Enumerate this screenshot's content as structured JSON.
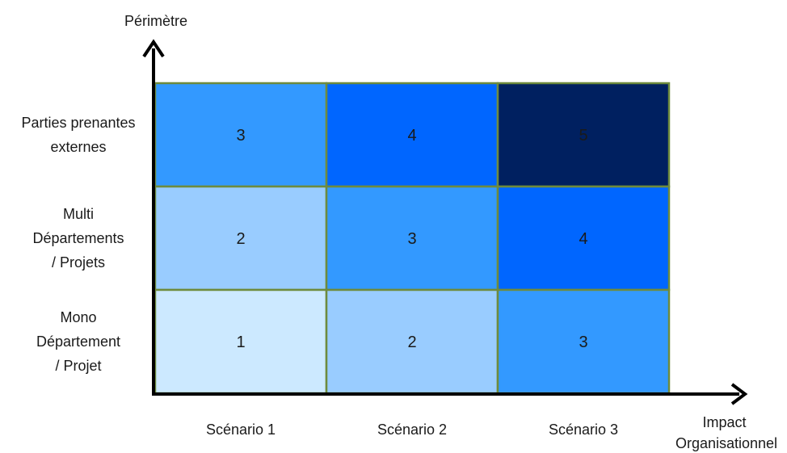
{
  "chart_data": {
    "type": "heatmap",
    "y_axis_title": "Périmètre",
    "x_axis_title_lines": [
      "Impact",
      "Organisationnel"
    ],
    "x_categories": [
      "Scénario 1",
      "Scénario 2",
      "Scénario 3"
    ],
    "y_categories": [
      [
        "Parties prenantes",
        "externes"
      ],
      [
        "Multi",
        "Départements",
        "/ Projets"
      ],
      [
        "Mono",
        "Département",
        "/ Projet"
      ]
    ],
    "values": [
      [
        3,
        4,
        5
      ],
      [
        2,
        3,
        4
      ],
      [
        1,
        2,
        3
      ]
    ],
    "level_colors": {
      "1": "#CCE9FF",
      "2": "#99CCFF",
      "3": "#3399FF",
      "4": "#0066FF",
      "5": "#002060"
    },
    "grid_color": "#6E8B3D",
    "axis_color": "#000000"
  }
}
